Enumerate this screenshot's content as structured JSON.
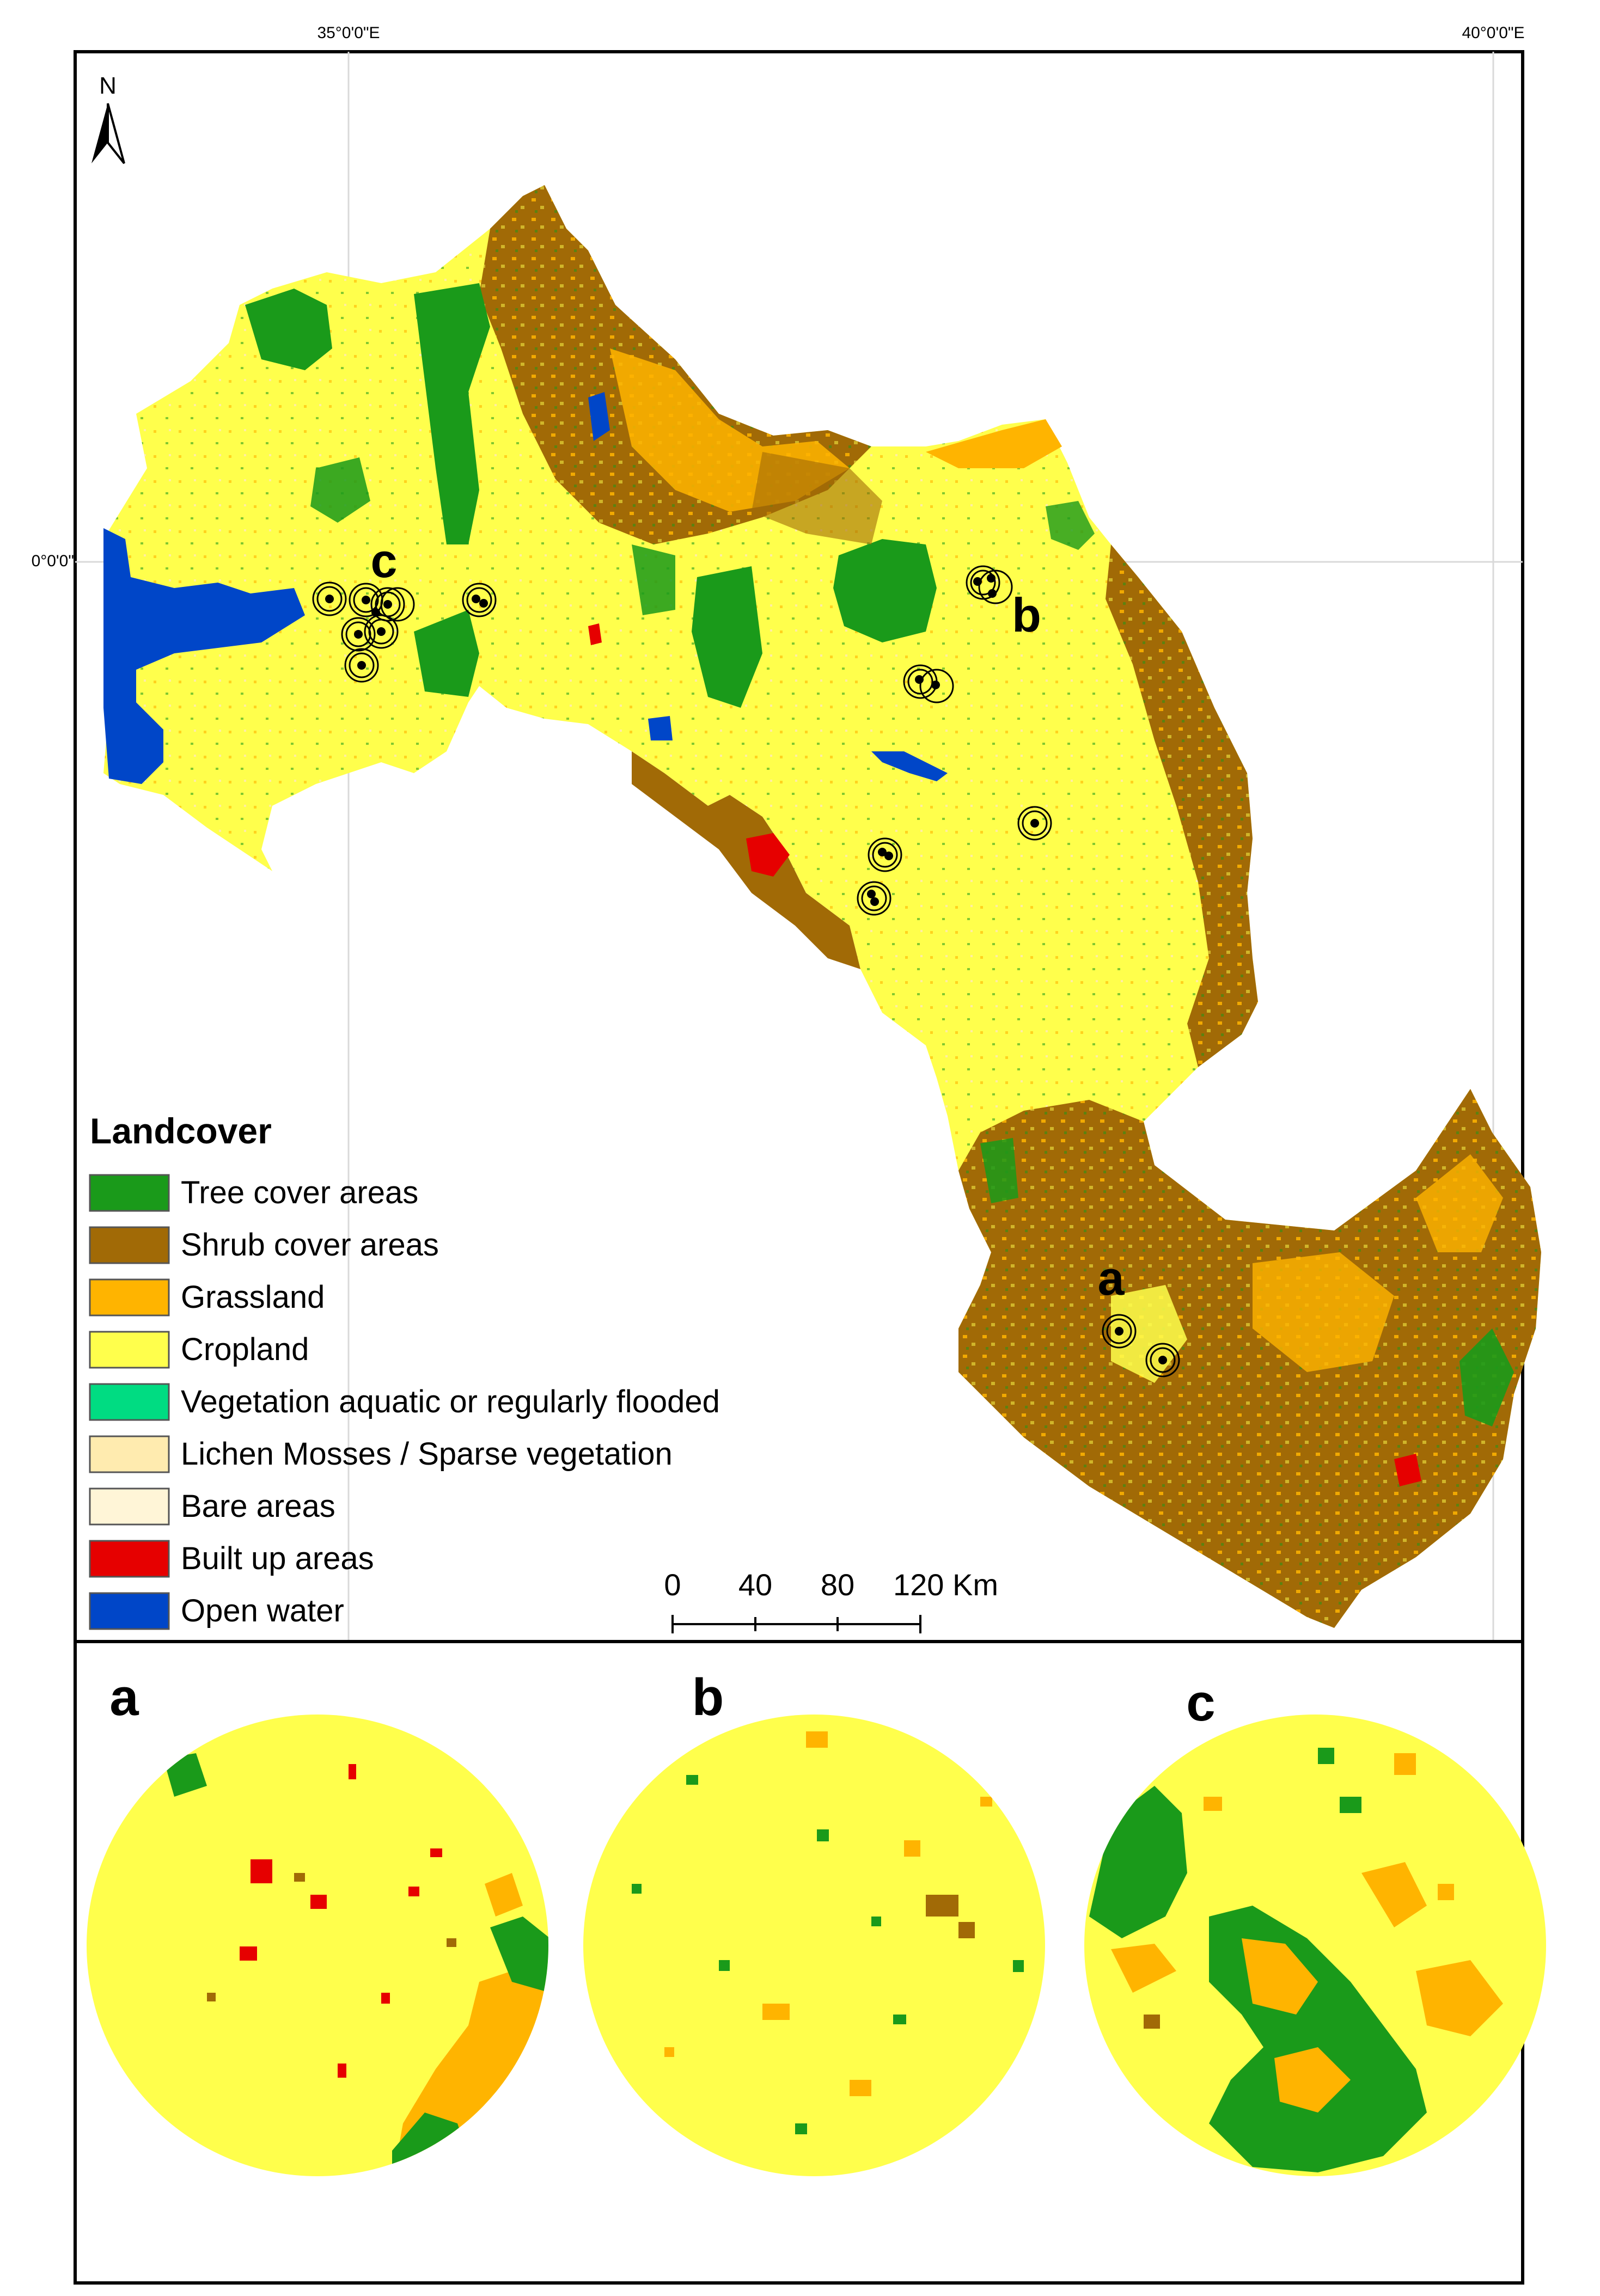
{
  "map": {
    "graticule": {
      "top_labels": [
        "35°0'0\"E",
        "40°0'0\"E"
      ],
      "left_label": "0°0'0\""
    },
    "north_arrow": {
      "label": "N",
      "icon": "north-arrow-icon"
    },
    "site_labels": [
      "a",
      "b",
      "c"
    ]
  },
  "legend": {
    "title": "Landcover",
    "items": [
      {
        "label": "Tree cover areas",
        "color": "#1a9a1a"
      },
      {
        "label": "Shrub cover areas",
        "color": "#a16a06"
      },
      {
        "label": "Grassland",
        "color": "#ffb400"
      },
      {
        "label": "Cropland",
        "color": "#ffff4c"
      },
      {
        "label": "Vegetation aquatic or regularly flooded",
        "color": "#00dc82"
      },
      {
        "label": "Lichen Mosses / Sparse vegetation",
        "color": "#ffebaf"
      },
      {
        "label": "Bare areas",
        "color": "#fff5d7"
      },
      {
        "label": "Built up areas",
        "color": "#e60000"
      },
      {
        "label": "Open water",
        "color": "#0046c8"
      }
    ]
  },
  "scale_bar": {
    "ticks": [
      "0",
      "40",
      "80",
      "120 Km"
    ]
  },
  "insets": [
    {
      "label": "a"
    },
    {
      "label": "b"
    },
    {
      "label": "c"
    }
  ]
}
